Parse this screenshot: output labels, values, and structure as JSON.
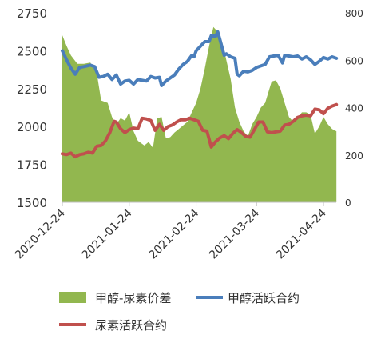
{
  "chart_data": {
    "type": "line",
    "title": "",
    "x_tick_labels": [
      "2020-12-24",
      "2021-01-24",
      "2021-02-24",
      "2021-03-24",
      "2021-04-24"
    ],
    "y_left": {
      "ylim": [
        1500,
        2750
      ],
      "ticks": [
        1500,
        1750,
        2000,
        2250,
        2500,
        2750
      ]
    },
    "y_right": {
      "ylim": [
        0,
        800
      ],
      "ticks": [
        0,
        200,
        400,
        600,
        800
      ]
    },
    "grid": false,
    "legend_position": "bottom",
    "series": [
      {
        "name": "甲醇-尿素价差",
        "kind": "area",
        "axis": "right",
        "color": "#92b74f",
        "points": [
          [
            "2020-12-24",
            705
          ],
          [
            "2020-12-26",
            660
          ],
          [
            "2020-12-28",
            620
          ],
          [
            "2020-12-31",
            585
          ],
          [
            "2021-01-03",
            585
          ],
          [
            "2021-01-06",
            590
          ],
          [
            "2021-01-09",
            545
          ],
          [
            "2021-01-11",
            430
          ],
          [
            "2021-01-14",
            420
          ],
          [
            "2021-01-16",
            360
          ],
          [
            "2021-01-18",
            330
          ],
          [
            "2021-01-20",
            355
          ],
          [
            "2021-01-22",
            345
          ],
          [
            "2021-01-24",
            380
          ],
          [
            "2021-01-26",
            300
          ],
          [
            "2021-01-28",
            260
          ],
          [
            "2021-01-31",
            240
          ],
          [
            "2021-02-02",
            255
          ],
          [
            "2021-02-04",
            230
          ],
          [
            "2021-02-06",
            355
          ],
          [
            "2021-02-08",
            360
          ],
          [
            "2021-02-10",
            270
          ],
          [
            "2021-02-12",
            275
          ],
          [
            "2021-02-14",
            295
          ],
          [
            "2021-02-16",
            310
          ],
          [
            "2021-02-18",
            325
          ],
          [
            "2021-02-20",
            340
          ],
          [
            "2021-02-22",
            380
          ],
          [
            "2021-02-24",
            420
          ],
          [
            "2021-02-26",
            480
          ],
          [
            "2021-02-28",
            565
          ],
          [
            "2021-03-02",
            660
          ],
          [
            "2021-03-04",
            740
          ],
          [
            "2021-03-06",
            720
          ],
          [
            "2021-03-08",
            680
          ],
          [
            "2021-03-10",
            600
          ],
          [
            "2021-03-12",
            520
          ],
          [
            "2021-03-14",
            400
          ],
          [
            "2021-03-16",
            340
          ],
          [
            "2021-03-18",
            300
          ],
          [
            "2021-03-20",
            280
          ],
          [
            "2021-03-22",
            330
          ],
          [
            "2021-03-24",
            360
          ],
          [
            "2021-03-26",
            400
          ],
          [
            "2021-03-28",
            420
          ],
          [
            "2021-03-31",
            510
          ],
          [
            "2021-04-02",
            515
          ],
          [
            "2021-04-04",
            480
          ],
          [
            "2021-04-06",
            420
          ],
          [
            "2021-04-08",
            360
          ],
          [
            "2021-04-10",
            340
          ],
          [
            "2021-04-12",
            355
          ],
          [
            "2021-04-14",
            380
          ],
          [
            "2021-04-16",
            380
          ],
          [
            "2021-04-18",
            370
          ],
          [
            "2021-04-20",
            290
          ],
          [
            "2021-04-22",
            320
          ],
          [
            "2021-04-24",
            360
          ],
          [
            "2021-04-26",
            330
          ],
          [
            "2021-04-28",
            310
          ],
          [
            "2021-04-30",
            300
          ]
        ]
      },
      {
        "name": "甲醇活跃合约",
        "kind": "line",
        "axis": "left",
        "color": "#4a7ebb",
        "points": [
          [
            "2020-12-24",
            2500
          ],
          [
            "2020-12-26",
            2440
          ],
          [
            "2020-12-28",
            2385
          ],
          [
            "2020-12-30",
            2345
          ],
          [
            "2021-01-01",
            2390
          ],
          [
            "2021-01-03",
            2395
          ],
          [
            "2021-01-06",
            2405
          ],
          [
            "2021-01-08",
            2395
          ],
          [
            "2021-01-10",
            2325
          ],
          [
            "2021-01-12",
            2330
          ],
          [
            "2021-01-14",
            2345
          ],
          [
            "2021-01-16",
            2310
          ],
          [
            "2021-01-18",
            2340
          ],
          [
            "2021-01-20",
            2280
          ],
          [
            "2021-01-22",
            2300
          ],
          [
            "2021-01-24",
            2305
          ],
          [
            "2021-01-26",
            2280
          ],
          [
            "2021-01-28",
            2310
          ],
          [
            "2021-01-30",
            2305
          ],
          [
            "2021-02-01",
            2300
          ],
          [
            "2021-02-03",
            2330
          ],
          [
            "2021-02-05",
            2320
          ],
          [
            "2021-02-07",
            2325
          ],
          [
            "2021-02-08",
            2270
          ],
          [
            "2021-02-10",
            2300
          ],
          [
            "2021-02-12",
            2320
          ],
          [
            "2021-02-14",
            2340
          ],
          [
            "2021-02-16",
            2380
          ],
          [
            "2021-02-18",
            2410
          ],
          [
            "2021-02-20",
            2430
          ],
          [
            "2021-02-22",
            2470
          ],
          [
            "2021-02-23",
            2460
          ],
          [
            "2021-02-24",
            2500
          ],
          [
            "2021-02-26",
            2530
          ],
          [
            "2021-02-28",
            2560
          ],
          [
            "2021-03-02",
            2560
          ],
          [
            "2021-03-03",
            2600
          ],
          [
            "2021-03-05",
            2595
          ],
          [
            "2021-03-06",
            2625
          ],
          [
            "2021-03-07",
            2575
          ],
          [
            "2021-03-09",
            2470
          ],
          [
            "2021-03-10",
            2480
          ],
          [
            "2021-03-12",
            2460
          ],
          [
            "2021-03-14",
            2450
          ],
          [
            "2021-03-15",
            2345
          ],
          [
            "2021-03-16",
            2335
          ],
          [
            "2021-03-18",
            2365
          ],
          [
            "2021-03-20",
            2360
          ],
          [
            "2021-03-22",
            2370
          ],
          [
            "2021-03-24",
            2390
          ],
          [
            "2021-03-26",
            2400
          ],
          [
            "2021-03-28",
            2410
          ],
          [
            "2021-03-30",
            2460
          ],
          [
            "2021-04-01",
            2465
          ],
          [
            "2021-04-03",
            2470
          ],
          [
            "2021-04-05",
            2420
          ],
          [
            "2021-04-06",
            2470
          ],
          [
            "2021-04-08",
            2465
          ],
          [
            "2021-04-10",
            2460
          ],
          [
            "2021-04-12",
            2465
          ],
          [
            "2021-04-14",
            2445
          ],
          [
            "2021-04-16",
            2460
          ],
          [
            "2021-04-18",
            2440
          ],
          [
            "2021-04-20",
            2410
          ],
          [
            "2021-04-22",
            2430
          ],
          [
            "2021-04-24",
            2455
          ],
          [
            "2021-04-26",
            2445
          ],
          [
            "2021-04-28",
            2460
          ],
          [
            "2021-04-30",
            2450
          ]
        ]
      },
      {
        "name": "尿素活跃合约",
        "kind": "line",
        "axis": "left",
        "color": "#c0504d",
        "points": [
          [
            "2020-12-24",
            1820
          ],
          [
            "2020-12-26",
            1815
          ],
          [
            "2020-12-28",
            1825
          ],
          [
            "2020-12-30",
            1800
          ],
          [
            "2021-01-01",
            1815
          ],
          [
            "2021-01-03",
            1820
          ],
          [
            "2021-01-05",
            1830
          ],
          [
            "2021-01-07",
            1825
          ],
          [
            "2021-01-09",
            1870
          ],
          [
            "2021-01-11",
            1875
          ],
          [
            "2021-01-13",
            1905
          ],
          [
            "2021-01-15",
            1960
          ],
          [
            "2021-01-17",
            2035
          ],
          [
            "2021-01-18",
            2030
          ],
          [
            "2021-01-20",
            1985
          ],
          [
            "2021-01-22",
            1960
          ],
          [
            "2021-01-24",
            1980
          ],
          [
            "2021-01-26",
            1990
          ],
          [
            "2021-01-28",
            1985
          ],
          [
            "2021-01-30",
            2055
          ],
          [
            "2021-02-01",
            2050
          ],
          [
            "2021-02-03",
            2040
          ],
          [
            "2021-02-05",
            1975
          ],
          [
            "2021-02-07",
            2015
          ],
          [
            "2021-02-09",
            1975
          ],
          [
            "2021-02-11",
            2000
          ],
          [
            "2021-02-13",
            2010
          ],
          [
            "2021-02-15",
            2030
          ],
          [
            "2021-02-17",
            2045
          ],
          [
            "2021-02-19",
            2045
          ],
          [
            "2021-02-21",
            2055
          ],
          [
            "2021-02-23",
            2045
          ],
          [
            "2021-02-25",
            2035
          ],
          [
            "2021-02-27",
            1975
          ],
          [
            "2021-03-01",
            1970
          ],
          [
            "2021-03-03",
            1865
          ],
          [
            "2021-03-05",
            1900
          ],
          [
            "2021-03-07",
            1925
          ],
          [
            "2021-03-09",
            1940
          ],
          [
            "2021-03-11",
            1920
          ],
          [
            "2021-03-13",
            1955
          ],
          [
            "2021-03-15",
            1980
          ],
          [
            "2021-03-17",
            1960
          ],
          [
            "2021-03-19",
            1935
          ],
          [
            "2021-03-21",
            1930
          ],
          [
            "2021-03-23",
            1980
          ],
          [
            "2021-03-25",
            2030
          ],
          [
            "2021-03-27",
            2030
          ],
          [
            "2021-03-29",
            1965
          ],
          [
            "2021-03-31",
            1960
          ],
          [
            "2021-04-02",
            1965
          ],
          [
            "2021-04-04",
            1970
          ],
          [
            "2021-04-06",
            2010
          ],
          [
            "2021-04-08",
            2015
          ],
          [
            "2021-04-10",
            2035
          ],
          [
            "2021-04-12",
            2060
          ],
          [
            "2021-04-14",
            2070
          ],
          [
            "2021-04-16",
            2075
          ],
          [
            "2021-04-18",
            2070
          ],
          [
            "2021-04-20",
            2115
          ],
          [
            "2021-04-22",
            2110
          ],
          [
            "2021-04-24",
            2085
          ],
          [
            "2021-04-26",
            2120
          ],
          [
            "2021-04-28",
            2135
          ],
          [
            "2021-04-30",
            2145
          ]
        ]
      }
    ]
  }
}
